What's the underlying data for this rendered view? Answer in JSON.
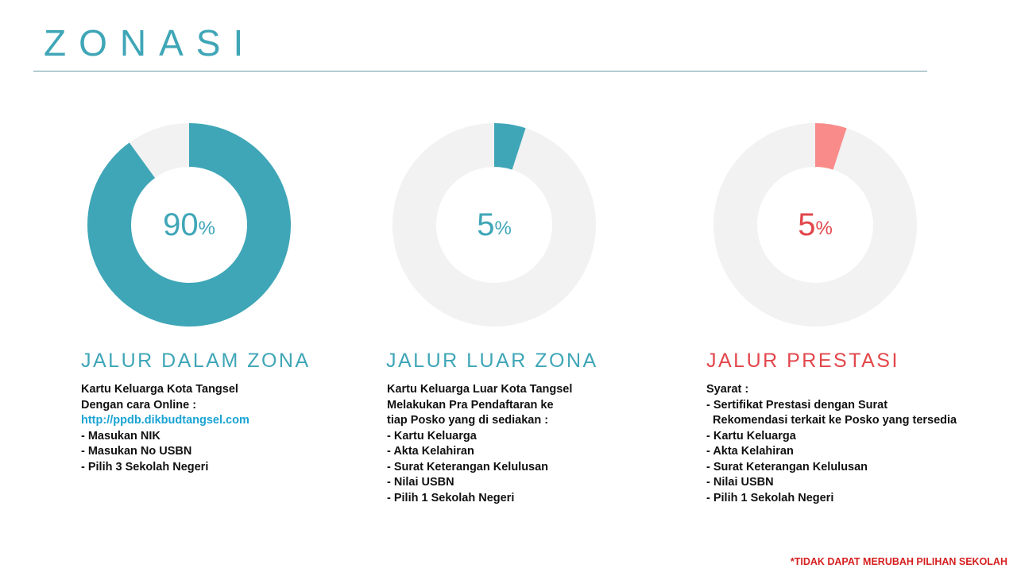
{
  "title": "ZONASI",
  "colors": {
    "teal": "#3fa6b7",
    "red": "#e2474b",
    "pink": "#f98b8b",
    "track": "#f2f2f2"
  },
  "chart_data": [
    {
      "type": "pie",
      "variant": "donut",
      "value": 90,
      "label": "90",
      "unit": "%",
      "color": "#3fa6b7",
      "label_color": "#3fa6b7"
    },
    {
      "type": "pie",
      "variant": "donut",
      "value": 5,
      "label": "5",
      "unit": "%",
      "color": "#3fa6b7",
      "label_color": "#3fa6b7"
    },
    {
      "type": "pie",
      "variant": "donut",
      "value": 5,
      "label": "5",
      "unit": "%",
      "color": "#f98b8b",
      "label_color": "#e2474b"
    }
  ],
  "sections": [
    {
      "heading": "JALUR DALAM ZONA",
      "heading_color": "#3fa6b7",
      "lines": [
        "Kartu Keluarga Kota Tangsel",
        "Dengan cara Online :",
        "http://ppdb.dikbudtangsel.com",
        "- Masukan NIK",
        "- Masukan No USBN",
        "- Pilih 3 Sekolah Negeri"
      ]
    },
    {
      "heading": "JALUR LUAR ZONA",
      "heading_color": "#3fa6b7",
      "lines": [
        "Kartu Keluarga Luar Kota Tangsel",
        "Melakukan Pra Pendaftaran ke",
        "tiap Posko yang di sediakan :",
        "- Kartu Keluarga",
        "- Akta Kelahiran",
        "- Surat Keterangan Kelulusan",
        "- Nilai USBN",
        "- Pilih 1 Sekolah Negeri"
      ]
    },
    {
      "heading": "JALUR PRESTASI",
      "heading_color": "#e2474b",
      "lines": [
        "Syarat :",
        "- Sertifikat Prestasi dengan Surat",
        "  Rekomendasi terkait ke Posko yang tersedia",
        "- Kartu Keluarga",
        "- Akta Kelahiran",
        "- Surat Keterangan Kelulusan",
        "- Nilai USBN",
        "- Pilih 1 Sekolah Negeri"
      ]
    }
  ],
  "footnote": "*TIDAK DAPAT MERUBAH PILIHAN SEKOLAH"
}
